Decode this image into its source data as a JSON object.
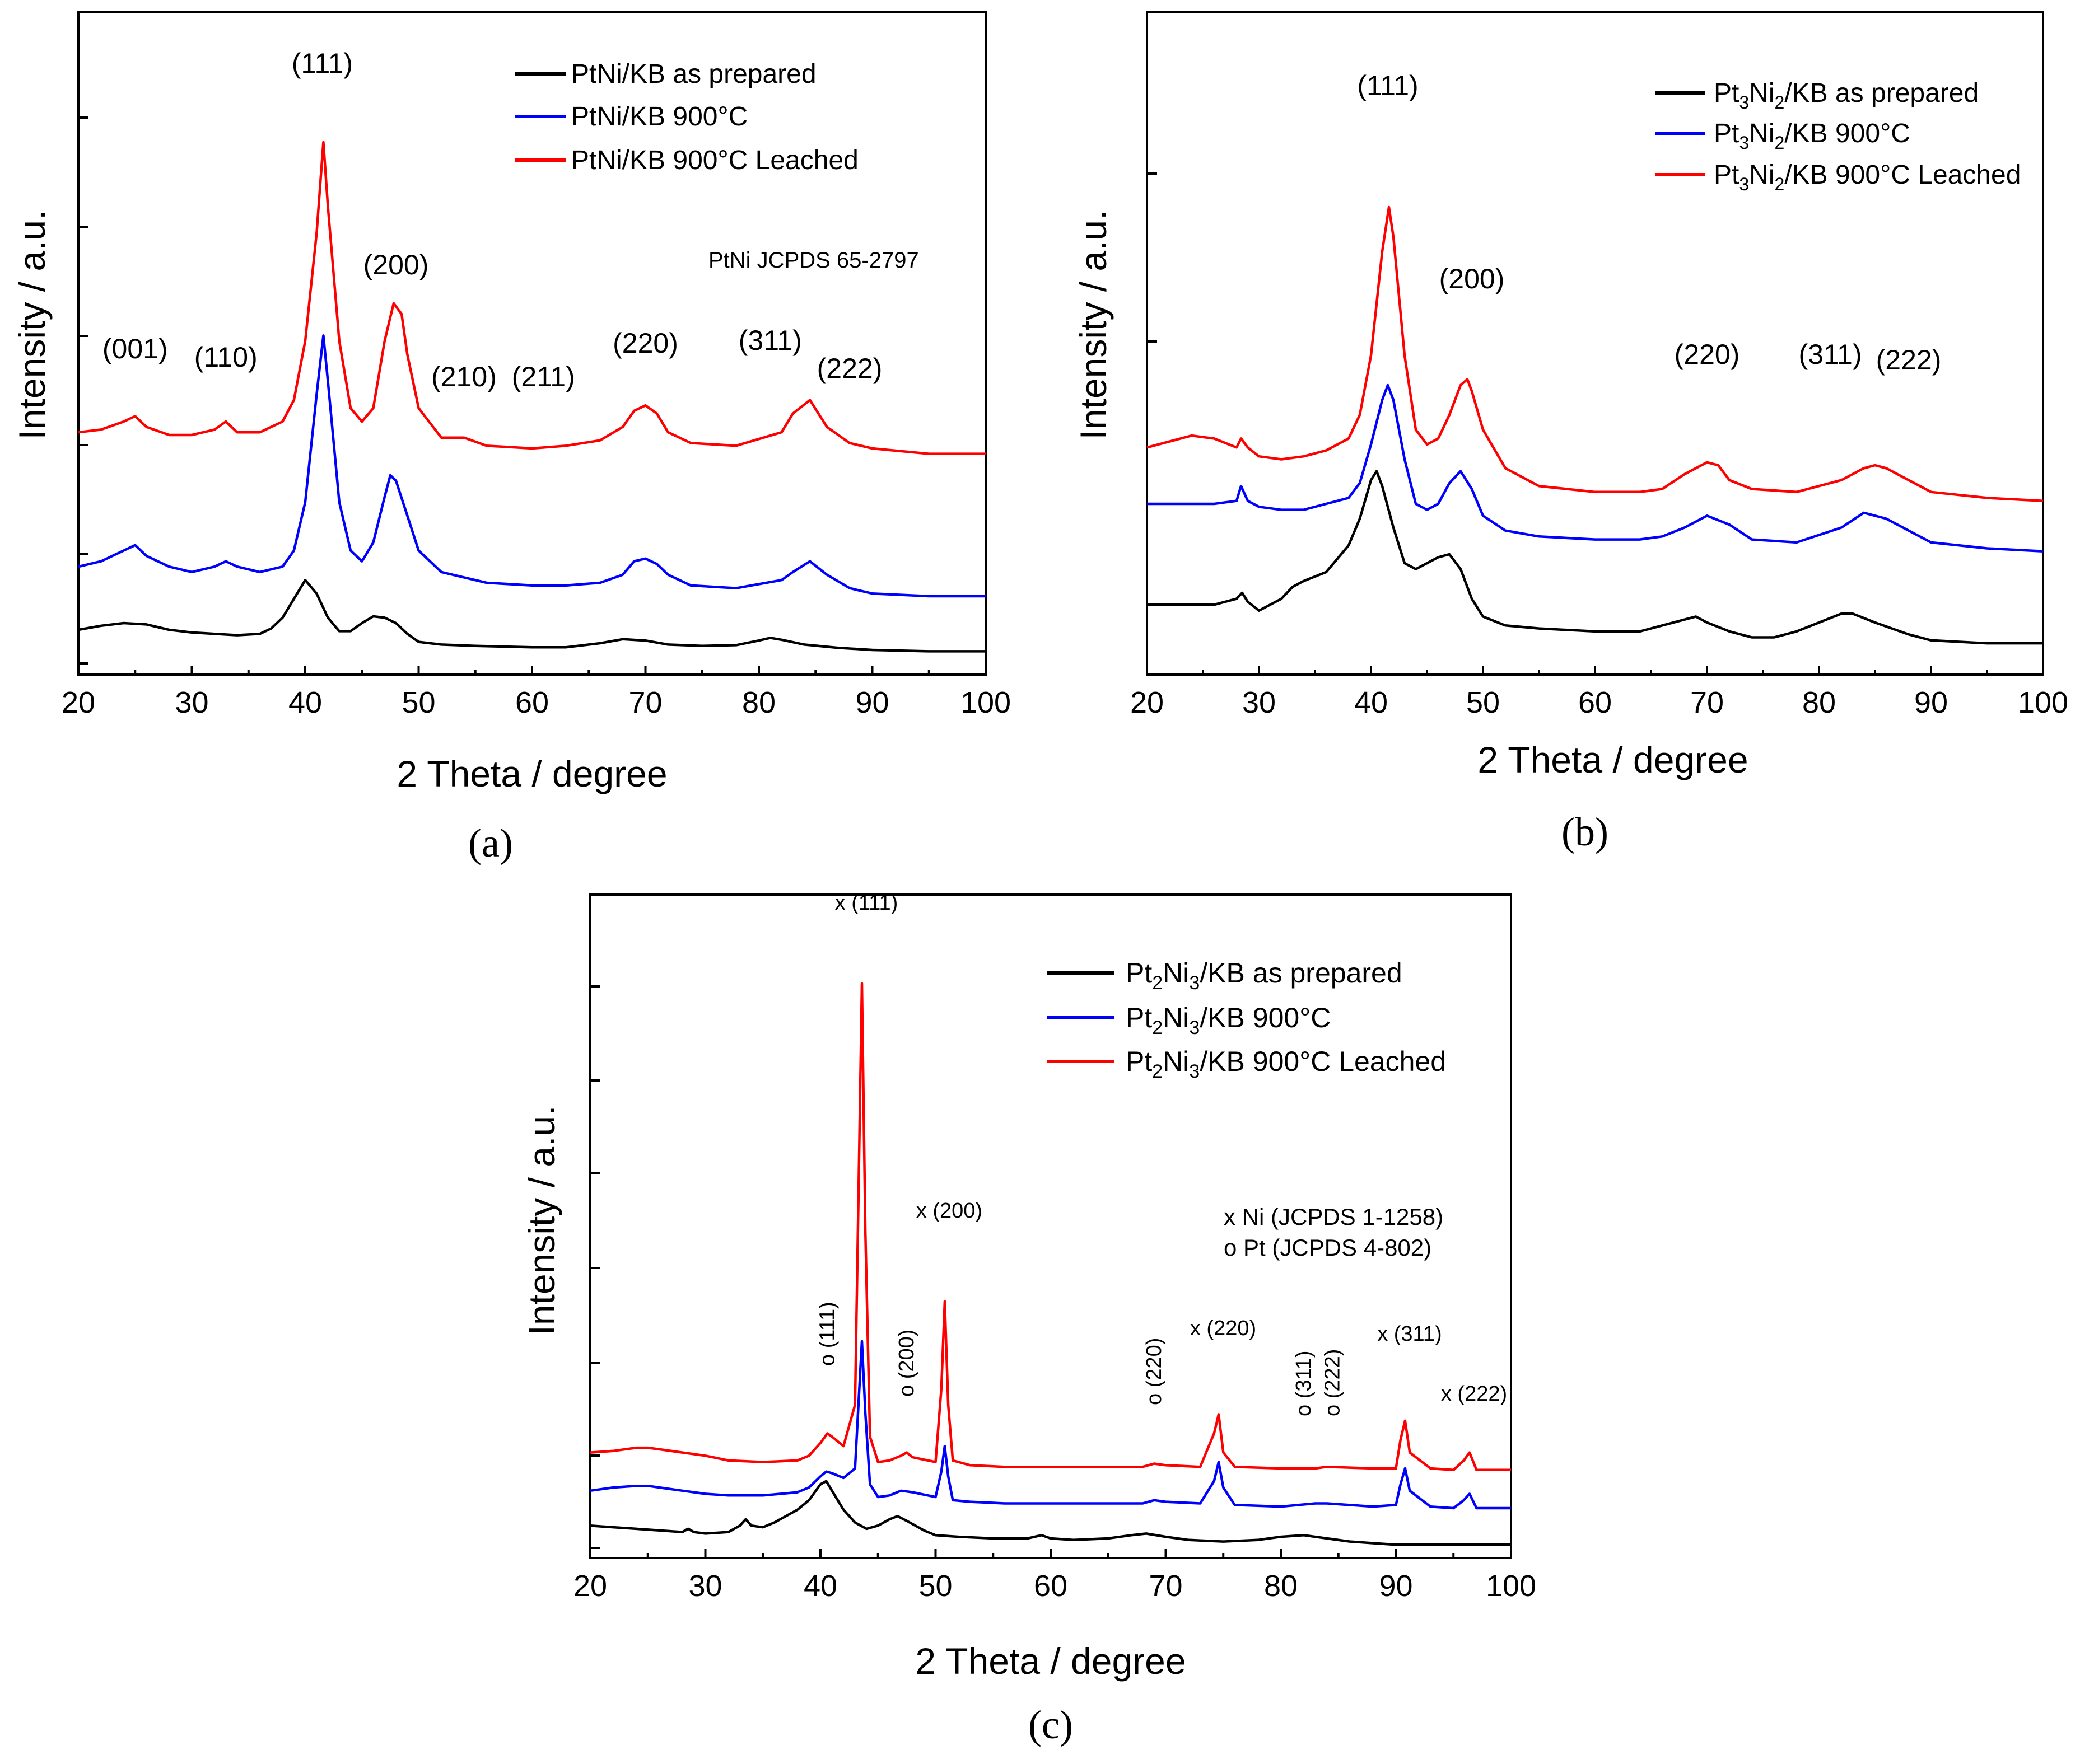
{
  "chart_data": [
    {
      "panel": "(a)",
      "type": "line",
      "xlabel": "2 Theta / degree",
      "ylabel": "Intensity / a.u.",
      "xlim": [
        20,
        100
      ],
      "xticks": [
        "20",
        "30",
        "40",
        "50",
        "60",
        "70",
        "80",
        "90",
        "100"
      ],
      "y_tick_labels_shown": false,
      "legend_position": "top-right",
      "annotation": "PtNi JCPDS 65-2797",
      "series": [
        {
          "name": "PtNi/KB as prepared",
          "color": "#000000",
          "x": [
            20,
            22,
            24,
            26,
            28,
            30,
            32,
            34,
            36,
            37,
            38,
            39,
            40,
            41,
            42,
            43,
            44,
            45,
            46,
            47,
            48,
            49,
            50,
            52,
            55,
            60,
            63,
            66,
            68,
            70,
            72,
            75,
            78,
            80,
            81,
            82,
            84,
            87,
            90,
            95,
            100
          ],
          "y": [
            0.125,
            0.14,
            0.15,
            0.145,
            0.125,
            0.115,
            0.11,
            0.105,
            0.11,
            0.13,
            0.17,
            0.24,
            0.31,
            0.26,
            0.17,
            0.12,
            0.12,
            0.15,
            0.175,
            0.17,
            0.15,
            0.11,
            0.08,
            0.07,
            0.065,
            0.06,
            0.06,
            0.075,
            0.09,
            0.085,
            0.07,
            0.065,
            0.068,
            0.085,
            0.095,
            0.088,
            0.07,
            0.058,
            0.05,
            0.045,
            0.045
          ]
        },
        {
          "name": "PtNi/KB 900°C",
          "color": "#0000ff",
          "x": [
            20,
            22,
            24,
            25,
            26,
            28,
            30,
            32,
            33,
            34,
            36,
            38,
            39,
            40,
            41,
            41.6,
            42,
            43,
            44,
            45,
            46,
            47,
            47.5,
            48,
            49,
            50,
            52,
            54,
            56,
            60,
            63,
            66,
            68,
            69,
            70,
            71,
            72,
            74,
            78,
            82,
            83,
            84.5,
            86,
            88,
            90,
            95,
            100
          ],
          "y": [
            0.36,
            0.38,
            0.42,
            0.44,
            0.4,
            0.36,
            0.34,
            0.36,
            0.38,
            0.36,
            0.34,
            0.36,
            0.42,
            0.6,
            1.0,
            1.22,
            1.05,
            0.6,
            0.42,
            0.38,
            0.45,
            0.62,
            0.7,
            0.68,
            0.55,
            0.42,
            0.34,
            0.32,
            0.3,
            0.29,
            0.29,
            0.3,
            0.33,
            0.38,
            0.39,
            0.37,
            0.33,
            0.29,
            0.28,
            0.31,
            0.34,
            0.38,
            0.33,
            0.28,
            0.26,
            0.25,
            0.25
          ]
        },
        {
          "name": "PtNi/KB 900°C Leached",
          "color": "#ff0000",
          "x": [
            20,
            22,
            24,
            25,
            26,
            28,
            30,
            32,
            33,
            34,
            36,
            38,
            39,
            40,
            41,
            41.6,
            42,
            43,
            44,
            45,
            46,
            47,
            47.8,
            48.5,
            49,
            50,
            52,
            54,
            56,
            60,
            63,
            66,
            68,
            69,
            70,
            71,
            72,
            74,
            78,
            82,
            83,
            84.5,
            86,
            88,
            90,
            95,
            100
          ],
          "y": [
            0.86,
            0.87,
            0.9,
            0.92,
            0.88,
            0.85,
            0.85,
            0.87,
            0.9,
            0.86,
            0.86,
            0.9,
            0.98,
            1.2,
            1.6,
            1.94,
            1.7,
            1.2,
            0.95,
            0.9,
            0.95,
            1.2,
            1.34,
            1.3,
            1.15,
            0.95,
            0.84,
            0.84,
            0.81,
            0.8,
            0.81,
            0.83,
            0.88,
            0.94,
            0.96,
            0.93,
            0.86,
            0.82,
            0.81,
            0.86,
            0.93,
            0.98,
            0.88,
            0.82,
            0.8,
            0.78,
            0.78
          ]
        }
      ],
      "peak_labels": [
        {
          "text": "(001)",
          "x": 25
        },
        {
          "text": "(110)",
          "x": 33
        },
        {
          "text": "(111)",
          "x": 41.5
        },
        {
          "text": "(200)",
          "x": 48
        },
        {
          "text": "(210)",
          "x": 54
        },
        {
          "text": "(211)",
          "x": 61
        },
        {
          "text": "(220)",
          "x": 70
        },
        {
          "text": "(311)",
          "x": 81
        },
        {
          "text": "(222)",
          "x": 88
        }
      ]
    },
    {
      "panel": "(b)",
      "type": "line",
      "xlabel": "2 Theta / degree",
      "ylabel": "Intensity / a.u.",
      "xlim": [
        20,
        100
      ],
      "xticks": [
        "20",
        "30",
        "40",
        "50",
        "60",
        "70",
        "80",
        "90",
        "100"
      ],
      "y_tick_labels_shown": false,
      "legend_position": "top-right",
      "series": [
        {
          "name": "Pt3Ni2/KB as prepared",
          "color": "#000000",
          "x": [
            20,
            22,
            24,
            26,
            28,
            28.5,
            29,
            30,
            32,
            33,
            34,
            36,
            38,
            39,
            40,
            40.5,
            41,
            42,
            43,
            44,
            45,
            46,
            47,
            48,
            49,
            50,
            52,
            55,
            60,
            64,
            66,
            68,
            69,
            70,
            72,
            74,
            76,
            78,
            80,
            82,
            83,
            85,
            88,
            90,
            95,
            100
          ],
          "y": [
            0.16,
            0.16,
            0.16,
            0.16,
            0.18,
            0.2,
            0.17,
            0.14,
            0.18,
            0.22,
            0.24,
            0.27,
            0.36,
            0.45,
            0.58,
            0.61,
            0.56,
            0.42,
            0.3,
            0.28,
            0.3,
            0.32,
            0.33,
            0.28,
            0.18,
            0.12,
            0.09,
            0.08,
            0.07,
            0.07,
            0.09,
            0.11,
            0.12,
            0.1,
            0.07,
            0.05,
            0.05,
            0.07,
            0.1,
            0.13,
            0.13,
            0.1,
            0.06,
            0.04,
            0.03,
            0.03
          ]
        },
        {
          "name": "Pt3Ni2/KB 900°C",
          "color": "#0000ff",
          "x": [
            20,
            22,
            24,
            26,
            28,
            28.4,
            29,
            30,
            32,
            34,
            36,
            38,
            39,
            40,
            41,
            41.5,
            42,
            43,
            44,
            45,
            46,
            47,
            48,
            49,
            50,
            52,
            55,
            60,
            64,
            66,
            68,
            70,
            72,
            74,
            78,
            82,
            84,
            86,
            88,
            90,
            95,
            100
          ],
          "y": [
            0.5,
            0.5,
            0.5,
            0.5,
            0.51,
            0.56,
            0.51,
            0.49,
            0.48,
            0.48,
            0.5,
            0.52,
            0.57,
            0.7,
            0.85,
            0.9,
            0.85,
            0.65,
            0.5,
            0.48,
            0.5,
            0.57,
            0.61,
            0.55,
            0.46,
            0.41,
            0.39,
            0.38,
            0.38,
            0.39,
            0.42,
            0.46,
            0.43,
            0.38,
            0.37,
            0.42,
            0.47,
            0.45,
            0.41,
            0.37,
            0.35,
            0.34
          ]
        },
        {
          "name": "Pt3Ni2/KB 900°C Leached",
          "color": "#ff0000",
          "x": [
            20,
            22,
            24,
            26,
            28,
            28.4,
            29,
            30,
            32,
            34,
            36,
            38,
            39,
            40,
            41,
            41.6,
            42,
            43,
            44,
            45,
            46,
            47,
            48,
            48.6,
            49,
            50,
            52,
            55,
            60,
            64,
            66,
            68,
            70,
            71,
            72,
            74,
            78,
            82,
            84,
            85,
            86,
            88,
            90,
            95,
            100
          ],
          "y": [
            0.69,
            0.71,
            0.73,
            0.72,
            0.69,
            0.72,
            0.69,
            0.66,
            0.65,
            0.66,
            0.68,
            0.72,
            0.8,
            1.0,
            1.35,
            1.5,
            1.4,
            1.0,
            0.75,
            0.7,
            0.72,
            0.8,
            0.9,
            0.92,
            0.88,
            0.75,
            0.62,
            0.56,
            0.54,
            0.54,
            0.55,
            0.6,
            0.64,
            0.63,
            0.58,
            0.55,
            0.54,
            0.58,
            0.62,
            0.63,
            0.62,
            0.58,
            0.54,
            0.52,
            0.51
          ]
        }
      ],
      "peak_labels": [
        {
          "text": "(111)",
          "x": 41.5
        },
        {
          "text": "(200)",
          "x": 49
        },
        {
          "text": "(220)",
          "x": 70
        },
        {
          "text": "(311)",
          "x": 81
        },
        {
          "text": "(222)",
          "x": 88
        }
      ]
    },
    {
      "panel": "(c)",
      "type": "line",
      "xlabel": "2 Theta / degree",
      "ylabel": "Intensity / a.u.",
      "xlim": [
        20,
        100
      ],
      "xticks": [
        "20",
        "30",
        "40",
        "50",
        "60",
        "70",
        "80",
        "90",
        "100"
      ],
      "y_tick_labels_shown": false,
      "legend_position": "top-right",
      "annotations": [
        "x Ni (JCPDS 1-1258)",
        "o Pt (JCPDS 4-802)"
      ],
      "series": [
        {
          "name": "Pt2Ni3/KB as prepared",
          "color": "#000000",
          "x": [
            20,
            22,
            24,
            26,
            28,
            28.5,
            29,
            30,
            32,
            33,
            33.5,
            34,
            35,
            36,
            38,
            39,
            40,
            40.5,
            41,
            42,
            43,
            44,
            45,
            46,
            46.7,
            47.5,
            49,
            50,
            52,
            55,
            58,
            59.2,
            60,
            62,
            65,
            67,
            68.3,
            70,
            72,
            75,
            78,
            80,
            82,
            84,
            86,
            88,
            90,
            95,
            100
          ],
          "y": [
            0.14,
            0.13,
            0.12,
            0.11,
            0.1,
            0.12,
            0.1,
            0.09,
            0.1,
            0.14,
            0.18,
            0.14,
            0.13,
            0.16,
            0.24,
            0.3,
            0.4,
            0.42,
            0.36,
            0.24,
            0.16,
            0.12,
            0.14,
            0.18,
            0.2,
            0.17,
            0.11,
            0.08,
            0.07,
            0.06,
            0.06,
            0.08,
            0.06,
            0.05,
            0.06,
            0.08,
            0.09,
            0.07,
            0.05,
            0.04,
            0.05,
            0.07,
            0.08,
            0.06,
            0.04,
            0.03,
            0.02,
            0.02,
            0.02
          ]
        },
        {
          "name": "Pt2Ni3/KB 900°C",
          "color": "#0000ff",
          "x": [
            20,
            22,
            24,
            25,
            26,
            28,
            30,
            32,
            35,
            38,
            39,
            40,
            40.5,
            41,
            42,
            43,
            43.3,
            43.6,
            43.9,
            44.3,
            45,
            46,
            47,
            48,
            50,
            50.5,
            50.8,
            51.1,
            51.5,
            53,
            56,
            60,
            65,
            68,
            69,
            70,
            73,
            74.2,
            74.6,
            75,
            76,
            80,
            83,
            84,
            88,
            90,
            90.4,
            90.8,
            91.2,
            93,
            95,
            95.9,
            96.4,
            97,
            100
          ],
          "y": [
            0.36,
            0.38,
            0.39,
            0.39,
            0.38,
            0.36,
            0.34,
            0.33,
            0.33,
            0.35,
            0.38,
            0.45,
            0.48,
            0.47,
            0.44,
            0.5,
            0.9,
            1.3,
            0.85,
            0.4,
            0.32,
            0.33,
            0.36,
            0.35,
            0.32,
            0.48,
            0.64,
            0.45,
            0.3,
            0.29,
            0.28,
            0.28,
            0.28,
            0.28,
            0.3,
            0.29,
            0.28,
            0.42,
            0.54,
            0.38,
            0.27,
            0.26,
            0.28,
            0.28,
            0.26,
            0.27,
            0.4,
            0.5,
            0.36,
            0.26,
            0.25,
            0.3,
            0.34,
            0.25,
            0.25
          ]
        },
        {
          "name": "Pt2Ni3/KB 900°C Leached",
          "color": "#ff0000",
          "x": [
            20,
            22,
            24,
            25,
            26,
            28,
            30,
            32,
            35,
            38,
            39,
            40,
            40.6,
            41,
            42,
            43,
            43.3,
            43.6,
            43.9,
            44.3,
            45,
            46,
            47,
            47.5,
            48,
            50,
            50.5,
            50.8,
            51.1,
            51.5,
            53,
            56,
            60,
            65,
            68,
            69,
            70,
            73,
            74.2,
            74.6,
            75,
            76,
            80,
            83,
            84,
            88,
            90,
            90.4,
            90.8,
            91.2,
            93,
            95,
            95.9,
            96.4,
            97,
            100
          ],
          "y": [
            0.6,
            0.61,
            0.63,
            0.63,
            0.62,
            0.6,
            0.58,
            0.55,
            0.54,
            0.55,
            0.58,
            0.66,
            0.72,
            0.7,
            0.64,
            0.9,
            2.2,
            3.55,
            2.0,
            0.7,
            0.54,
            0.55,
            0.58,
            0.6,
            0.57,
            0.54,
            1.0,
            1.55,
            0.9,
            0.55,
            0.52,
            0.51,
            0.51,
            0.51,
            0.51,
            0.53,
            0.52,
            0.51,
            0.72,
            0.84,
            0.6,
            0.51,
            0.5,
            0.5,
            0.51,
            0.5,
            0.5,
            0.68,
            0.8,
            0.6,
            0.5,
            0.49,
            0.55,
            0.6,
            0.49,
            0.49
          ]
        }
      ],
      "peak_labels": [
        {
          "text": "x (111)",
          "x": 43.6
        },
        {
          "text": "x (200)",
          "x": 50.8
        },
        {
          "text": "x (220)",
          "x": 74.6
        },
        {
          "text": "x (311)",
          "x": 90.8
        },
        {
          "text": "x (222)",
          "x": 96.4
        },
        {
          "text": "o (111)",
          "x": 40.6
        },
        {
          "text": "o (200)",
          "x": 47.5
        },
        {
          "text": "o (220)",
          "x": 69
        },
        {
          "text": "o (311)",
          "x": 82
        },
        {
          "text": "o (222)",
          "x": 84.5
        }
      ]
    }
  ],
  "captions": {
    "a": "(a)",
    "b": "(b)",
    "c": "(c)"
  },
  "legends": {
    "a": [
      "PtNi/KB as prepared",
      "PtNi/KB 900°C",
      "PtNi/KB 900°C Leached"
    ],
    "b": {
      "prefix": "Pt",
      "sub1": "3",
      "mid": "Ni",
      "sub2": "2",
      "suffixes": [
        "/KB as prepared",
        "/KB  900°C",
        "/KB  900°C Leached"
      ]
    },
    "c": {
      "prefix": "Pt",
      "sub1": "2",
      "mid": "Ni",
      "sub2": "3",
      "suffixes": [
        "/KB as prepared",
        "/KB 900°C",
        "/KB 900°C Leached"
      ]
    }
  },
  "colors": {
    "as_prepared": "#000000",
    "heated": "#0000ff",
    "leached": "#ff0000"
  }
}
